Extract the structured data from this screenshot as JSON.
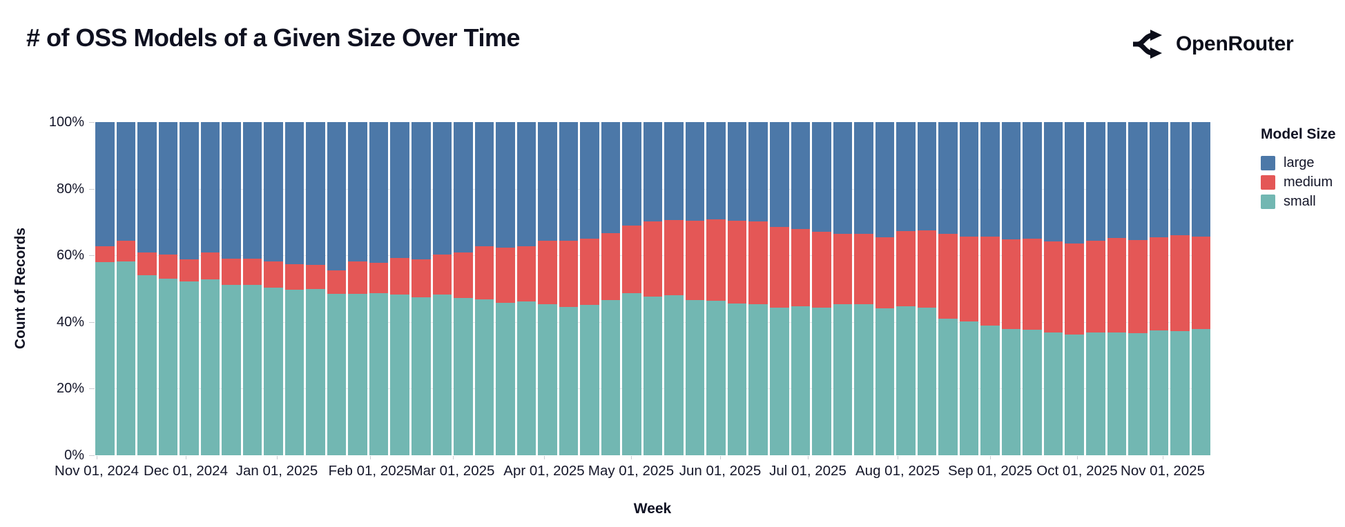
{
  "header": {
    "title": "# of OSS Models of a Given Size Over Time",
    "logo_text": "OpenRouter"
  },
  "legend": {
    "title": "Model Size",
    "items": [
      {
        "label": "large",
        "color": "#4c78a8"
      },
      {
        "label": "medium",
        "color": "#e45756"
      },
      {
        "label": "small",
        "color": "#72b7b2"
      }
    ]
  },
  "axes": {
    "y_title": "Count of Records",
    "x_title": "Week",
    "y_ticks": [
      {
        "label": "100%",
        "value": 100
      },
      {
        "label": "80%",
        "value": 80
      },
      {
        "label": "60%",
        "value": 60
      },
      {
        "label": "40%",
        "value": 40
      },
      {
        "label": "20%",
        "value": 20
      },
      {
        "label": "0%",
        "value": 0
      }
    ],
    "x_ticks": [
      "Nov 01, 2024",
      "Dec 01, 2024",
      "Jan 01, 2025",
      "Feb 01, 2025",
      "Mar 01, 2025",
      "Apr 01, 2025",
      "May 01, 2025",
      "Jun 01, 2025",
      "Jul 01, 2025",
      "Aug 01, 2025",
      "Sep 01, 2025",
      "Oct 01, 2025",
      "Nov 01, 2025"
    ]
  },
  "chart_data": {
    "type": "bar",
    "stacked": true,
    "normalized_percent": true,
    "title": "# of OSS Models of a Given Size Over Time",
    "xlabel": "Week",
    "ylabel": "Count of Records",
    "ylim": [
      0,
      100
    ],
    "grid": true,
    "legend_position": "right",
    "x": [
      "2024-11-01",
      "2024-11-08",
      "2024-11-15",
      "2024-11-22",
      "2024-11-29",
      "2024-12-06",
      "2024-12-13",
      "2024-12-20",
      "2024-12-27",
      "2025-01-03",
      "2025-01-10",
      "2025-01-17",
      "2025-01-24",
      "2025-01-31",
      "2025-02-07",
      "2025-02-14",
      "2025-02-21",
      "2025-02-28",
      "2025-03-07",
      "2025-03-14",
      "2025-03-21",
      "2025-03-28",
      "2025-04-04",
      "2025-04-11",
      "2025-04-18",
      "2025-04-25",
      "2025-05-02",
      "2025-05-09",
      "2025-05-16",
      "2025-05-23",
      "2025-05-30",
      "2025-06-06",
      "2025-06-13",
      "2025-06-20",
      "2025-06-27",
      "2025-07-04",
      "2025-07-11",
      "2025-07-18",
      "2025-07-25",
      "2025-08-01",
      "2025-08-08",
      "2025-08-15",
      "2025-08-22",
      "2025-08-29",
      "2025-09-05",
      "2025-09-12",
      "2025-09-19",
      "2025-09-26",
      "2025-10-03",
      "2025-10-10",
      "2025-10-17",
      "2025-10-24",
      "2025-10-31"
    ],
    "series": [
      {
        "name": "small",
        "color": "#72b7b2",
        "values": [
          58.0,
          58.2,
          54.0,
          53.1,
          52.2,
          52.9,
          51.2,
          51.2,
          50.4,
          49.7,
          49.8,
          48.5,
          48.5,
          48.7,
          48.3,
          47.4,
          48.3,
          47.3,
          46.8,
          45.7,
          46.2,
          45.3,
          44.5,
          45.1,
          46.6,
          48.7,
          47.6,
          48.1,
          46.6,
          46.4,
          45.5,
          45.3,
          44.4,
          44.7,
          44.4,
          45.4,
          45.3,
          44.0,
          44.7,
          44.4,
          41.1,
          40.2,
          39.0,
          37.8,
          37.6,
          36.9,
          36.2,
          36.8,
          36.8,
          36.6,
          37.4,
          37.3,
          37.8
        ]
      },
      {
        "name": "medium",
        "color": "#e45756",
        "values": [
          4.7,
          6.2,
          6.9,
          7.1,
          6.7,
          7.9,
          7.8,
          7.8,
          7.8,
          7.6,
          7.3,
          7.0,
          9.6,
          9.1,
          10.9,
          11.3,
          11.9,
          13.6,
          15.9,
          16.6,
          16.5,
          19.1,
          19.8,
          20.0,
          20.0,
          20.3,
          22.6,
          22.6,
          23.9,
          24.5,
          25.0,
          24.9,
          24.1,
          23.3,
          22.7,
          21.1,
          21.2,
          21.4,
          22.6,
          23.2,
          25.3,
          25.5,
          26.7,
          27.1,
          27.4,
          27.3,
          27.4,
          27.5,
          28.4,
          27.9,
          28.0,
          28.7,
          27.8
        ]
      },
      {
        "name": "large",
        "color": "#4c78a8",
        "values": [
          37.3,
          35.6,
          39.1,
          39.8,
          41.1,
          39.2,
          41.0,
          41.0,
          41.8,
          42.7,
          42.9,
          44.5,
          41.9,
          42.2,
          40.8,
          41.3,
          39.8,
          39.1,
          37.3,
          37.7,
          37.3,
          35.6,
          35.7,
          34.9,
          33.4,
          31.0,
          29.8,
          29.3,
          29.5,
          29.1,
          29.5,
          29.8,
          31.5,
          32.0,
          32.9,
          33.5,
          33.5,
          34.6,
          32.7,
          32.4,
          33.6,
          34.3,
          34.3,
          35.1,
          35.0,
          35.8,
          36.4,
          35.7,
          34.8,
          35.5,
          34.6,
          34.0,
          34.4
        ]
      }
    ]
  }
}
